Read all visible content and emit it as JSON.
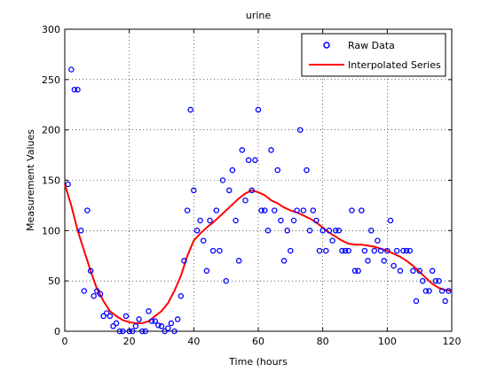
{
  "chart_data": {
    "type": "scatter",
    "title": "urine",
    "xlabel": "Time (hours",
    "ylabel": "Measurement Values",
    "xlim": [
      0,
      120
    ],
    "ylim": [
      0,
      300
    ],
    "xticks": [
      0,
      20,
      40,
      60,
      80,
      100,
      120
    ],
    "yticks": [
      0,
      50,
      100,
      150,
      200,
      250,
      300
    ],
    "grid": true,
    "legend_position": "top-right",
    "series": [
      {
        "name": "Raw Data",
        "kind": "scatter",
        "color": "#0000ff",
        "points": [
          [
            1,
            146
          ],
          [
            2,
            260
          ],
          [
            3,
            240
          ],
          [
            4,
            240
          ],
          [
            5,
            100
          ],
          [
            6,
            40
          ],
          [
            7,
            120
          ],
          [
            8,
            60
          ],
          [
            9,
            35
          ],
          [
            10,
            40
          ],
          [
            11,
            37
          ],
          [
            12,
            15
          ],
          [
            13,
            18
          ],
          [
            14,
            15
          ],
          [
            15,
            5
          ],
          [
            16,
            8
          ],
          [
            17,
            0
          ],
          [
            18,
            0
          ],
          [
            19,
            15
          ],
          [
            20,
            0
          ],
          [
            21,
            0
          ],
          [
            22,
            5
          ],
          [
            23,
            12
          ],
          [
            24,
            0
          ],
          [
            25,
            0
          ],
          [
            26,
            20
          ],
          [
            27,
            10
          ],
          [
            28,
            10
          ],
          [
            29,
            6
          ],
          [
            30,
            5
          ],
          [
            31,
            0
          ],
          [
            32,
            3
          ],
          [
            33,
            8
          ],
          [
            34,
            0
          ],
          [
            35,
            12
          ],
          [
            36,
            35
          ],
          [
            37,
            70
          ],
          [
            38,
            120
          ],
          [
            39,
            220
          ],
          [
            40,
            140
          ],
          [
            41,
            100
          ],
          [
            42,
            110
          ],
          [
            43,
            90
          ],
          [
            44,
            60
          ],
          [
            45,
            110
          ],
          [
            46,
            80
          ],
          [
            47,
            120
          ],
          [
            48,
            80
          ],
          [
            49,
            150
          ],
          [
            50,
            50
          ],
          [
            51,
            140
          ],
          [
            52,
            160
          ],
          [
            53,
            110
          ],
          [
            54,
            70
          ],
          [
            55,
            180
          ],
          [
            56,
            130
          ],
          [
            57,
            170
          ],
          [
            58,
            140
          ],
          [
            59,
            170
          ],
          [
            60,
            220
          ],
          [
            61,
            120
          ],
          [
            62,
            120
          ],
          [
            63,
            100
          ],
          [
            64,
            180
          ],
          [
            65,
            120
          ],
          [
            66,
            160
          ],
          [
            67,
            110
          ],
          [
            68,
            70
          ],
          [
            69,
            100
          ],
          [
            70,
            80
          ],
          [
            71,
            110
          ],
          [
            72,
            120
          ],
          [
            73,
            200
          ],
          [
            74,
            120
          ],
          [
            75,
            160
          ],
          [
            76,
            100
          ],
          [
            77,
            120
          ],
          [
            78,
            110
          ],
          [
            79,
            80
          ],
          [
            80,
            100
          ],
          [
            81,
            80
          ],
          [
            82,
            100
          ],
          [
            83,
            90
          ],
          [
            84,
            100
          ],
          [
            85,
            100
          ],
          [
            86,
            80
          ],
          [
            87,
            80
          ],
          [
            88,
            80
          ],
          [
            89,
            120
          ],
          [
            90,
            60
          ],
          [
            91,
            60
          ],
          [
            92,
            120
          ],
          [
            93,
            80
          ],
          [
            94,
            70
          ],
          [
            95,
            100
          ],
          [
            96,
            80
          ],
          [
            97,
            90
          ],
          [
            98,
            80
          ],
          [
            99,
            70
          ],
          [
            100,
            80
          ],
          [
            101,
            110
          ],
          [
            102,
            65
          ],
          [
            103,
            80
          ],
          [
            104,
            60
          ],
          [
            105,
            80
          ],
          [
            106,
            80
          ],
          [
            107,
            80
          ],
          [
            108,
            60
          ],
          [
            109,
            30
          ],
          [
            110,
            60
          ],
          [
            111,
            50
          ],
          [
            112,
            40
          ],
          [
            113,
            40
          ],
          [
            114,
            60
          ],
          [
            115,
            50
          ],
          [
            116,
            50
          ],
          [
            117,
            40
          ],
          [
            118,
            30
          ],
          [
            119,
            40
          ]
        ]
      },
      {
        "name": "Interpolated Series",
        "kind": "line",
        "color": "#ff0000",
        "points": [
          [
            0,
            146
          ],
          [
            2,
            125
          ],
          [
            4,
            100
          ],
          [
            6,
            80
          ],
          [
            8,
            60
          ],
          [
            10,
            42
          ],
          [
            12,
            30
          ],
          [
            14,
            20
          ],
          [
            16,
            15
          ],
          [
            18,
            11
          ],
          [
            20,
            9
          ],
          [
            22,
            8
          ],
          [
            24,
            8
          ],
          [
            26,
            10
          ],
          [
            28,
            15
          ],
          [
            30,
            20
          ],
          [
            32,
            28
          ],
          [
            34,
            40
          ],
          [
            36,
            55
          ],
          [
            38,
            75
          ],
          [
            40,
            90
          ],
          [
            42,
            97
          ],
          [
            44,
            103
          ],
          [
            46,
            108
          ],
          [
            48,
            114
          ],
          [
            50,
            120
          ],
          [
            52,
            126
          ],
          [
            54,
            132
          ],
          [
            56,
            137
          ],
          [
            58,
            140
          ],
          [
            60,
            138
          ],
          [
            62,
            135
          ],
          [
            64,
            130
          ],
          [
            66,
            127
          ],
          [
            68,
            123
          ],
          [
            70,
            120
          ],
          [
            72,
            118
          ],
          [
            74,
            115
          ],
          [
            76,
            112
          ],
          [
            78,
            108
          ],
          [
            80,
            103
          ],
          [
            82,
            98
          ],
          [
            84,
            94
          ],
          [
            86,
            90
          ],
          [
            88,
            87
          ],
          [
            90,
            86
          ],
          [
            92,
            86
          ],
          [
            94,
            85
          ],
          [
            96,
            84
          ],
          [
            98,
            82
          ],
          [
            100,
            80
          ],
          [
            102,
            77
          ],
          [
            104,
            74
          ],
          [
            106,
            70
          ],
          [
            108,
            65
          ],
          [
            110,
            59
          ],
          [
            112,
            53
          ],
          [
            114,
            47
          ],
          [
            116,
            43
          ],
          [
            118,
            41
          ],
          [
            120,
            40
          ]
        ]
      }
    ]
  }
}
